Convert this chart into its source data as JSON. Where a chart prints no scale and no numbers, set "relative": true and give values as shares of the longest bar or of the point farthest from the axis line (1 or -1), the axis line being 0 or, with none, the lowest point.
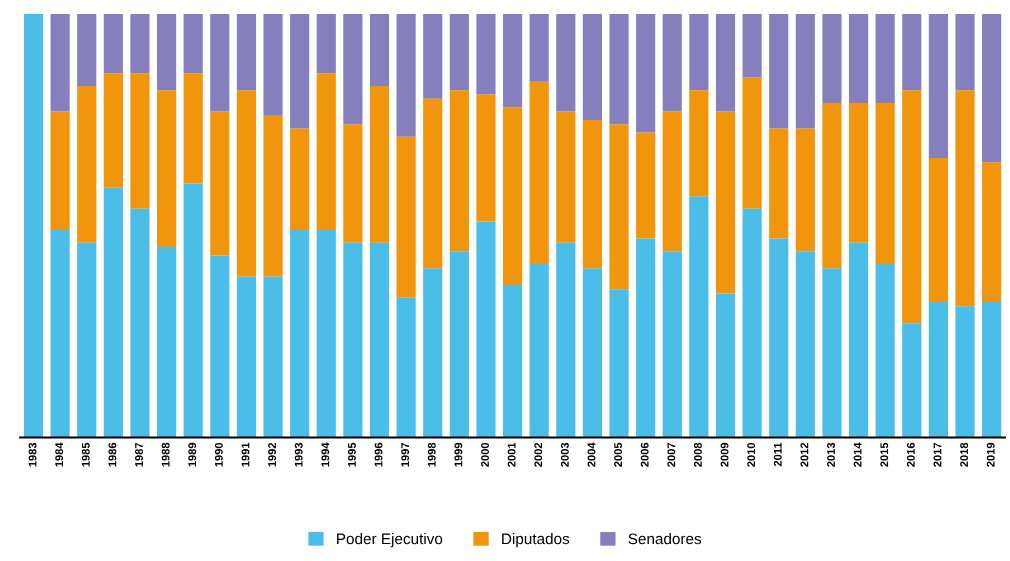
{
  "chart_data": {
    "type": "bar",
    "stacked": true,
    "relative": true,
    "legend": "bottom",
    "grid": false,
    "categories": [
      "1983",
      "1984",
      "1985",
      "1986",
      "1987",
      "1988",
      "1989",
      "1990",
      "1991",
      "1992",
      "1993",
      "1994",
      "1995",
      "1996",
      "1997",
      "1998",
      "1999",
      "2000",
      "2001",
      "2002",
      "2003",
      "2004",
      "2005",
      "2006",
      "2007",
      "2008",
      "2009",
      "2010",
      "2011",
      "2012",
      "2013",
      "2014",
      "2015",
      "2016",
      "2017",
      "2018",
      "2019"
    ],
    "series": [
      {
        "name": "Poder Ejecutivo",
        "color": "#4bbde9",
        "values": [
          1,
          0.49,
          0.46,
          0.59,
          0.54,
          0.45,
          0.6,
          0.43,
          0.38,
          0.38,
          0.49,
          0.49,
          0.46,
          0.46,
          0.33,
          0.4,
          0.44,
          0.51,
          0.36,
          0.41,
          0.46,
          0.4,
          0.35,
          0.47,
          0.44,
          0.57,
          0.34,
          0.54,
          0.47,
          0.44,
          0.4,
          0.46,
          0.41,
          0.27,
          0.32,
          0.31,
          0.32
        ]
      },
      {
        "name": "Diputados",
        "color": "#f0950c",
        "values": [
          0,
          0.28,
          0.37,
          0.27,
          0.32,
          0.37,
          0.26,
          0.34,
          0.44,
          0.38,
          0.24,
          0.37,
          0.28,
          0.37,
          0.38,
          0.4,
          0.38,
          0.3,
          0.42,
          0.43,
          0.31,
          0.35,
          0.39,
          0.25,
          0.33,
          0.25,
          0.43,
          0.31,
          0.26,
          0.29,
          0.39,
          0.33,
          0.38,
          0.55,
          0.34,
          0.51,
          0.33
        ]
      },
      {
        "name": "Senadores",
        "color": "#8580bd",
        "values": [
          0,
          0.23,
          0.17,
          0.14,
          0.14,
          0.18,
          0.14,
          0.23,
          0.18,
          0.24,
          0.27,
          0.14,
          0.26,
          0.17,
          0.29,
          0.2,
          0.18,
          0.19,
          0.22,
          0.16,
          0.23,
          0.25,
          0.26,
          0.28,
          0.23,
          0.18,
          0.23,
          0.15,
          0.27,
          0.27,
          0.21,
          0.21,
          0.21,
          0.18,
          0.34,
          0.18,
          0.35
        ]
      }
    ]
  }
}
